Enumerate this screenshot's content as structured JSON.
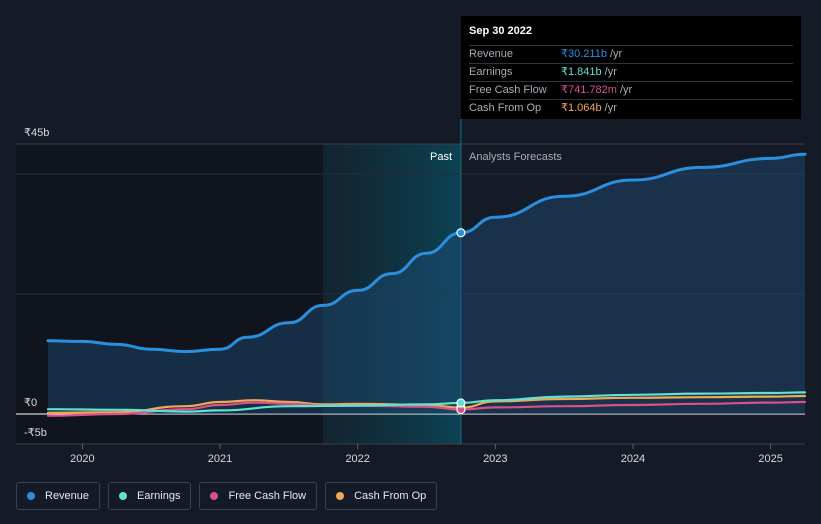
{
  "chart_data": {
    "type": "line",
    "y_unit_prefix": "₹",
    "y_ticks": [
      {
        "value": 45,
        "label": "₹45b"
      },
      {
        "value": 0,
        "label": "₹0"
      },
      {
        "value": -5,
        "label": "-₹5b"
      }
    ],
    "ylim": [
      -5,
      45
    ],
    "xlim": [
      2019.75,
      2025.25
    ],
    "x_ticks": [
      {
        "value": 2020,
        "label": "2020"
      },
      {
        "value": 2021,
        "label": "2021"
      },
      {
        "value": 2022,
        "label": "2022"
      },
      {
        "value": 2023,
        "label": "2023"
      },
      {
        "value": 2024,
        "label": "2024"
      },
      {
        "value": 2025,
        "label": "2025"
      }
    ],
    "divider_x": 2022.75,
    "past_shade_start": 2021.75,
    "past_label": "Past",
    "forecast_label": "Analysts Forecasts",
    "series": [
      {
        "name": "Revenue",
        "color": "#2a8fdf",
        "fill": true,
        "points": [
          [
            2019.75,
            12.2
          ],
          [
            2020.0,
            12.1
          ],
          [
            2020.25,
            11.6
          ],
          [
            2020.5,
            10.8
          ],
          [
            2020.75,
            10.4
          ],
          [
            2021.0,
            10.8
          ],
          [
            2021.2,
            12.8
          ],
          [
            2021.5,
            15.2
          ],
          [
            2021.75,
            18.1
          ],
          [
            2022.0,
            20.6
          ],
          [
            2022.25,
            23.4
          ],
          [
            2022.5,
            26.8
          ],
          [
            2022.75,
            30.211
          ],
          [
            2023.0,
            32.8
          ],
          [
            2023.5,
            36.3
          ],
          [
            2024.0,
            39.0
          ],
          [
            2024.5,
            41.1
          ],
          [
            2025.0,
            42.6
          ],
          [
            2025.25,
            43.3
          ]
        ]
      },
      {
        "name": "Earnings",
        "color": "#5fe3d0",
        "fill": false,
        "points": [
          [
            2019.75,
            0.8
          ],
          [
            2020.25,
            0.7
          ],
          [
            2020.75,
            0.4
          ],
          [
            2021.0,
            0.6
          ],
          [
            2021.5,
            1.3
          ],
          [
            2022.0,
            1.4
          ],
          [
            2022.5,
            1.6
          ],
          [
            2022.75,
            1.841
          ],
          [
            2023.0,
            2.3
          ],
          [
            2023.5,
            2.9
          ],
          [
            2024.0,
            3.2
          ],
          [
            2024.5,
            3.4
          ],
          [
            2025.0,
            3.5
          ],
          [
            2025.25,
            3.6
          ]
        ]
      },
      {
        "name": "Free Cash Flow",
        "color": "#d9508a",
        "fill": false,
        "points": [
          [
            2019.75,
            -0.3
          ],
          [
            2020.25,
            0.0
          ],
          [
            2020.75,
            0.8
          ],
          [
            2021.0,
            1.5
          ],
          [
            2021.25,
            1.9
          ],
          [
            2021.5,
            1.7
          ],
          [
            2021.75,
            1.4
          ],
          [
            2022.0,
            1.4
          ],
          [
            2022.5,
            1.2
          ],
          [
            2022.75,
            0.742
          ],
          [
            2023.0,
            1.1
          ],
          [
            2023.5,
            1.3
          ],
          [
            2024.0,
            1.5
          ],
          [
            2024.5,
            1.7
          ],
          [
            2025.0,
            1.9
          ],
          [
            2025.25,
            2.0
          ]
        ]
      },
      {
        "name": "Cash From Op",
        "color": "#f0a855",
        "fill": false,
        "points": [
          [
            2019.75,
            0.2
          ],
          [
            2020.25,
            0.3
          ],
          [
            2020.75,
            1.3
          ],
          [
            2021.0,
            2.0
          ],
          [
            2021.25,
            2.3
          ],
          [
            2021.5,
            2.0
          ],
          [
            2021.75,
            1.6
          ],
          [
            2022.0,
            1.7
          ],
          [
            2022.5,
            1.5
          ],
          [
            2022.75,
            1.064
          ],
          [
            2023.0,
            2.1
          ],
          [
            2023.5,
            2.5
          ],
          [
            2024.0,
            2.7
          ],
          [
            2024.5,
            2.8
          ],
          [
            2025.0,
            2.9
          ],
          [
            2025.25,
            3.0
          ]
        ]
      }
    ]
  },
  "tooltip": {
    "date": "Sep 30 2022",
    "rows": [
      {
        "label": "Revenue",
        "value": "₹30.211b",
        "unit": "/yr",
        "color": "#2a8fdf"
      },
      {
        "label": "Earnings",
        "value": "₹1.841b",
        "unit": "/yr",
        "color": "#5fe3d0"
      },
      {
        "label": "Free Cash Flow",
        "value": "₹741.782m",
        "unit": "/yr",
        "color": "#d9508a"
      },
      {
        "label": "Cash From Op",
        "value": "₹1.064b",
        "unit": "/yr",
        "color": "#f0a855"
      }
    ]
  },
  "legend": [
    {
      "label": "Revenue",
      "color": "#2a8fdf"
    },
    {
      "label": "Earnings",
      "color": "#5fe3d0"
    },
    {
      "label": "Free Cash Flow",
      "color": "#d9508a"
    },
    {
      "label": "Cash From Op",
      "color": "#f0a855"
    }
  ]
}
